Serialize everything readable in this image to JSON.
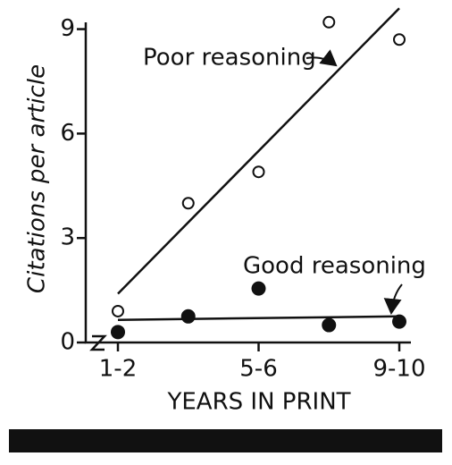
{
  "chart_data": {
    "type": "scatter",
    "y_label": "Citations per article",
    "x_label": "YEARS IN PRINT",
    "categories": [
      "1-2",
      null,
      "5-6",
      null,
      "9-10"
    ],
    "ylim": [
      0,
      9.4
    ],
    "yticks": [
      0,
      3,
      6,
      9
    ],
    "series": [
      {
        "name": "Poor reasoning",
        "color": "#111111",
        "marker": "open",
        "values": [
          0.9,
          4.0,
          4.9,
          9.2,
          8.7
        ],
        "fit": [
          1.4,
          9.6
        ]
      },
      {
        "name": "Good reasoning",
        "color": "#111111",
        "marker": "filled",
        "values": [
          0.3,
          0.75,
          1.55,
          0.5,
          0.6
        ],
        "fit": [
          0.65,
          0.75
        ]
      }
    ]
  }
}
